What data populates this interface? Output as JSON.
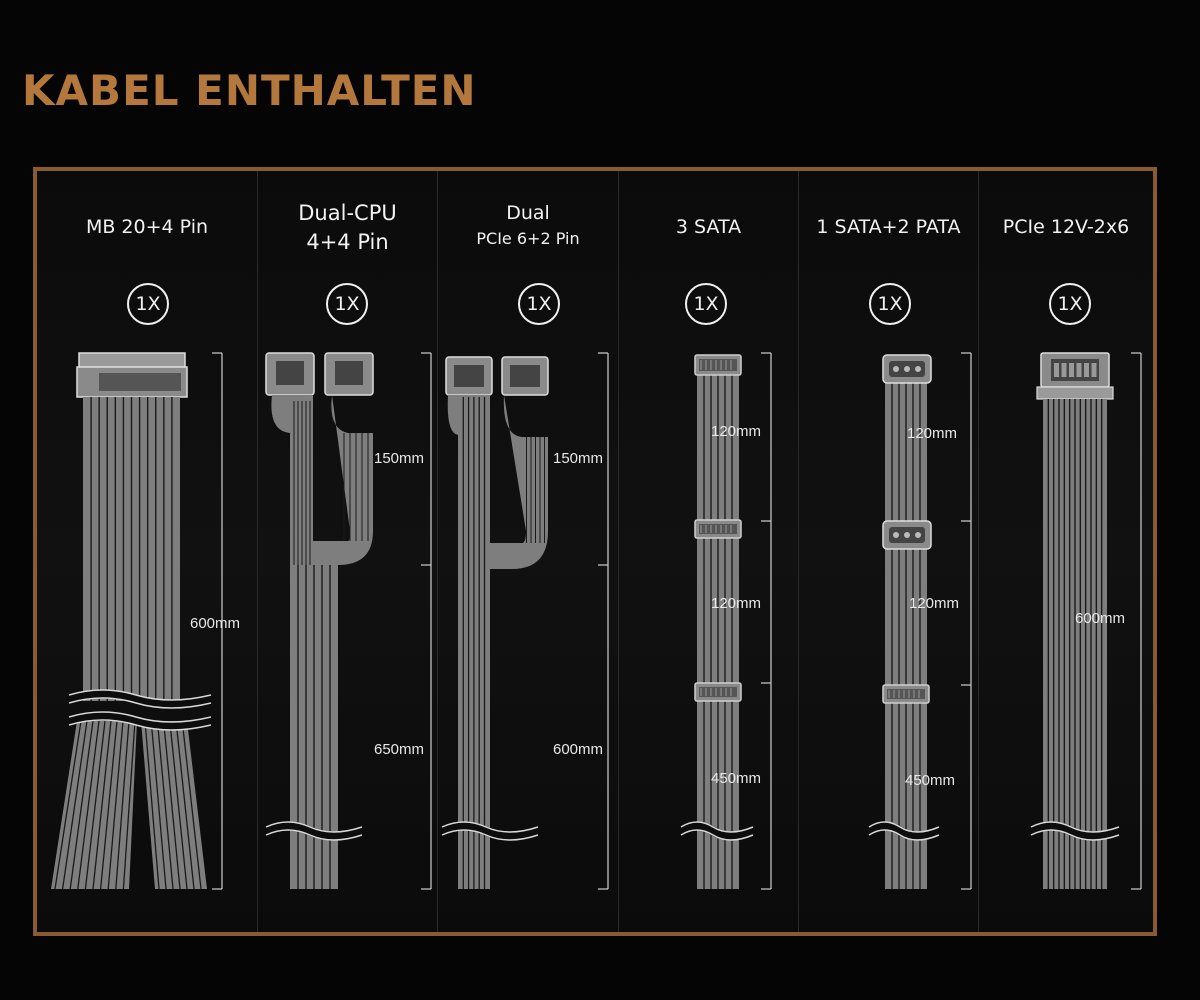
{
  "title": "KABEL ENTHALTEN",
  "colors": {
    "accent": "#b4783c",
    "frame": "#8a5a30",
    "cable": "#7e7e7e"
  },
  "panels": [
    {
      "title_line1": "MB 20+4 Pin",
      "quantity": "1X",
      "dims": [
        "600mm"
      ]
    },
    {
      "title_line1": "Dual-CPU",
      "title_line2": "4+4 Pin",
      "quantity": "1X",
      "dims": [
        "150mm",
        "650mm"
      ]
    },
    {
      "title_line1": "Dual",
      "title_line2": "PCIe 6+2 Pin",
      "quantity": "1X",
      "dims": [
        "150mm",
        "600mm"
      ]
    },
    {
      "title_line1": "3 SATA",
      "quantity": "1X",
      "dims": [
        "120mm",
        "120mm",
        "450mm"
      ]
    },
    {
      "title_line1": "1 SATA+2 PATA",
      "quantity": "1X",
      "dims": [
        "120mm",
        "120mm",
        "450mm"
      ]
    },
    {
      "title_line1": "PCIe 12V-2x6",
      "quantity": "1X",
      "dims": [
        "600mm"
      ]
    }
  ]
}
